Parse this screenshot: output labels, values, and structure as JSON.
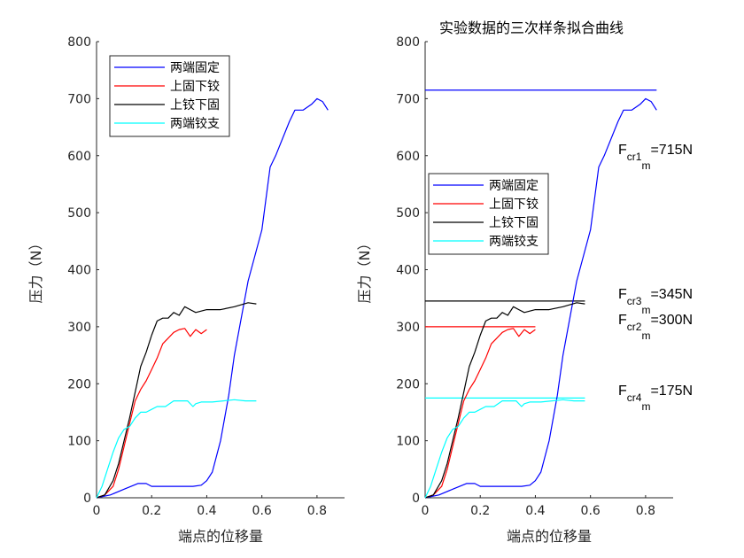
{
  "chart_data": [
    {
      "type": "line",
      "title": "",
      "xlabel": "端点的位移量",
      "ylabel": "压力（N）",
      "xlim": [
        0,
        0.9
      ],
      "ylim": [
        0,
        800
      ],
      "xticks": [
        "0",
        "0.2",
        "0.4",
        "0.6",
        "0.8"
      ],
      "yticks": [
        "0",
        "100",
        "200",
        "300",
        "400",
        "500",
        "600",
        "700",
        "800"
      ],
      "legend_position": "top-left",
      "series": [
        {
          "name": "两端固定",
          "color": "#0000ff",
          "x": [
            0,
            0.05,
            0.1,
            0.15,
            0.18,
            0.2,
            0.25,
            0.3,
            0.35,
            0.38,
            0.4,
            0.42,
            0.45,
            0.48,
            0.5,
            0.55,
            0.6,
            0.63,
            0.65,
            0.7,
            0.72,
            0.75,
            0.78,
            0.8,
            0.82,
            0.84
          ],
          "y": [
            0,
            5,
            15,
            25,
            25,
            20,
            20,
            20,
            20,
            22,
            30,
            45,
            100,
            180,
            250,
            380,
            470,
            580,
            600,
            660,
            680,
            680,
            690,
            700,
            695,
            680
          ]
        },
        {
          "name": "上固下铰",
          "color": "#ff0000",
          "x": [
            0,
            0.03,
            0.06,
            0.08,
            0.1,
            0.12,
            0.14,
            0.16,
            0.18,
            0.2,
            0.22,
            0.24,
            0.26,
            0.28,
            0.3,
            0.32,
            0.34,
            0.36,
            0.38,
            0.4
          ],
          "y": [
            0,
            5,
            20,
            50,
            90,
            130,
            170,
            190,
            205,
            225,
            245,
            270,
            280,
            290,
            295,
            297,
            283,
            295,
            288,
            295
          ]
        },
        {
          "name": "上铰下固",
          "color": "#000000",
          "x": [
            0,
            0.03,
            0.06,
            0.08,
            0.1,
            0.12,
            0.14,
            0.16,
            0.18,
            0.2,
            0.22,
            0.24,
            0.26,
            0.28,
            0.3,
            0.32,
            0.34,
            0.36,
            0.4,
            0.45,
            0.5,
            0.55,
            0.58
          ],
          "y": [
            0,
            5,
            30,
            60,
            100,
            140,
            185,
            230,
            255,
            285,
            310,
            315,
            315,
            325,
            320,
            335,
            330,
            325,
            330,
            330,
            335,
            342,
            340
          ]
        },
        {
          "name": "两端铰支",
          "color": "#00ffff",
          "x": [
            0,
            0.02,
            0.04,
            0.06,
            0.08,
            0.1,
            0.12,
            0.14,
            0.16,
            0.18,
            0.2,
            0.22,
            0.25,
            0.28,
            0.3,
            0.33,
            0.35,
            0.36,
            0.38,
            0.42,
            0.46,
            0.5,
            0.54,
            0.58
          ],
          "y": [
            0,
            20,
            50,
            80,
            105,
            120,
            125,
            140,
            150,
            150,
            155,
            160,
            160,
            170,
            170,
            170,
            160,
            165,
            168,
            168,
            170,
            172,
            170,
            170
          ]
        }
      ],
      "hlines": [],
      "annotations": []
    },
    {
      "type": "line",
      "title": "实验数据的三次样条拟合曲线",
      "xlabel": "端点的位移量",
      "ylabel": "压力（N）",
      "xlim": [
        0,
        0.9
      ],
      "ylim": [
        0,
        800
      ],
      "xticks": [
        "0",
        "0.2",
        "0.4",
        "0.6",
        "0.8"
      ],
      "yticks": [
        "0",
        "100",
        "200",
        "300",
        "400",
        "500",
        "600",
        "700",
        "800"
      ],
      "legend_position": "middle-left",
      "series": [
        {
          "name": "两端固定",
          "color": "#0000ff",
          "x": [
            0,
            0.05,
            0.1,
            0.15,
            0.18,
            0.2,
            0.25,
            0.3,
            0.35,
            0.38,
            0.4,
            0.42,
            0.45,
            0.48,
            0.5,
            0.55,
            0.6,
            0.63,
            0.65,
            0.7,
            0.72,
            0.75,
            0.78,
            0.8,
            0.82,
            0.84
          ],
          "y": [
            0,
            5,
            15,
            25,
            25,
            20,
            20,
            20,
            20,
            22,
            30,
            45,
            100,
            180,
            250,
            380,
            470,
            580,
            600,
            660,
            680,
            680,
            690,
            700,
            695,
            680
          ]
        },
        {
          "name": "上固下铰",
          "color": "#ff0000",
          "x": [
            0,
            0.03,
            0.06,
            0.08,
            0.1,
            0.12,
            0.14,
            0.16,
            0.18,
            0.2,
            0.22,
            0.24,
            0.26,
            0.28,
            0.3,
            0.32,
            0.34,
            0.36,
            0.38,
            0.4
          ],
          "y": [
            0,
            5,
            20,
            50,
            90,
            130,
            170,
            190,
            205,
            225,
            245,
            270,
            280,
            290,
            295,
            297,
            283,
            295,
            288,
            295
          ]
        },
        {
          "name": "上铰下固",
          "color": "#000000",
          "x": [
            0,
            0.03,
            0.06,
            0.08,
            0.1,
            0.12,
            0.14,
            0.16,
            0.18,
            0.2,
            0.22,
            0.24,
            0.26,
            0.28,
            0.3,
            0.32,
            0.34,
            0.36,
            0.4,
            0.45,
            0.5,
            0.55,
            0.58
          ],
          "y": [
            0,
            5,
            30,
            60,
            100,
            140,
            185,
            230,
            255,
            285,
            310,
            315,
            315,
            325,
            320,
            335,
            330,
            325,
            330,
            330,
            335,
            342,
            340
          ]
        },
        {
          "name": "两端铰支",
          "color": "#00ffff",
          "x": [
            0,
            0.02,
            0.04,
            0.06,
            0.08,
            0.1,
            0.12,
            0.14,
            0.16,
            0.18,
            0.2,
            0.22,
            0.25,
            0.28,
            0.3,
            0.33,
            0.35,
            0.36,
            0.38,
            0.42,
            0.46,
            0.5,
            0.54,
            0.58
          ],
          "y": [
            0,
            20,
            50,
            80,
            105,
            120,
            125,
            140,
            150,
            150,
            155,
            160,
            160,
            170,
            170,
            170,
            160,
            165,
            168,
            168,
            170,
            172,
            170,
            170
          ]
        }
      ],
      "hlines": [
        {
          "y": 715,
          "x_end": 0.84,
          "color": "#0000ff"
        },
        {
          "y": 345,
          "x_end": 0.58,
          "color": "#000000"
        },
        {
          "y": 300,
          "x_end": 0.4,
          "color": "#ff0000"
        },
        {
          "y": 175,
          "x_end": 0.58,
          "color": "#00ffff"
        }
      ],
      "annotations": [
        {
          "main": "F",
          "sub": "cr1",
          "subsub": "m",
          "value": "=715N"
        },
        {
          "main": "F",
          "sub": "cr3",
          "subsub": "m",
          "value": "=345N"
        },
        {
          "main": "F",
          "sub": "cr2",
          "subsub": "m",
          "value": "=300N"
        },
        {
          "main": "F",
          "sub": "cr4",
          "subsub": "m",
          "value": "=175N"
        }
      ]
    }
  ]
}
